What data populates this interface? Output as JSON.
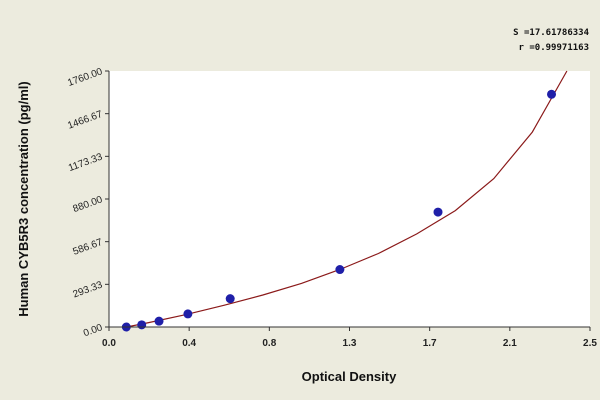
{
  "chart_data": {
    "type": "scatter",
    "xlabel": "Optical Density",
    "ylabel": "Human CYB5R3 concentration (pg/ml)",
    "xlim": [
      0.0,
      2.5
    ],
    "ylim": [
      0.0,
      1760.0
    ],
    "x_ticks": [
      "0.0",
      "0.4",
      "0.8",
      "1.3",
      "1.7",
      "2.1",
      "2.5"
    ],
    "y_ticks": [
      "0.00",
      "293.33",
      "586.67",
      "880.00",
      "1173.33",
      "1466.67",
      "1760.00"
    ],
    "grid": false,
    "legend": "none",
    "stats": {
      "s_label": "S =17.61786334",
      "r_label": "r =0.99971163"
    },
    "series": [
      {
        "points": [
          {
            "x": 0.09,
            "y": 0
          },
          {
            "x": 0.17,
            "y": 15
          },
          {
            "x": 0.26,
            "y": 40
          },
          {
            "x": 0.41,
            "y": 90
          },
          {
            "x": 0.63,
            "y": 195
          },
          {
            "x": 1.2,
            "y": 395
          },
          {
            "x": 1.71,
            "y": 790
          },
          {
            "x": 2.3,
            "y": 1600
          }
        ],
        "fit_curve": {
          "type": "exponential-fit",
          "x": [
            0.09,
            0.2,
            0.4,
            0.6,
            0.8,
            1.0,
            1.2,
            1.4,
            1.6,
            1.8,
            2.0,
            2.2,
            2.38
          ],
          "y": [
            0,
            28,
            85,
            150,
            220,
            300,
            395,
            505,
            640,
            800,
            1020,
            1340,
            1760
          ]
        },
        "marker_color": "#1f1fa8",
        "line_color": "#8b1a1a"
      }
    ]
  }
}
